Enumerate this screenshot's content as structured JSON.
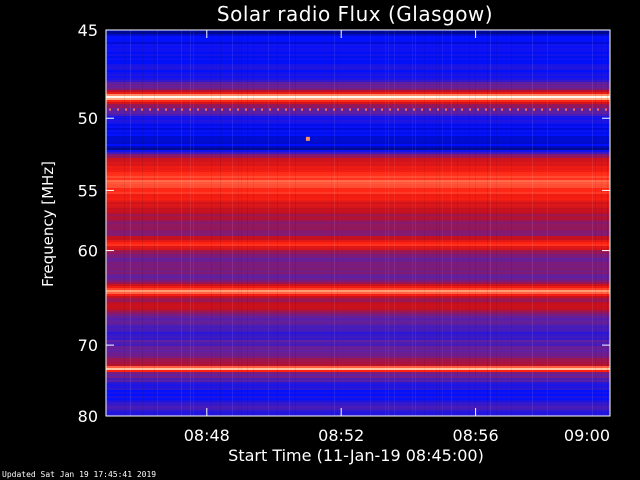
{
  "chart_data": {
    "type": "heatmap",
    "title": "Solar radio Flux (Glasgow)",
    "xlabel": "Start Time (11-Jan-19 08:45:00)",
    "ylabel": "Frequency [MHz]",
    "x_ticks": [
      "08:48",
      "08:52",
      "08:56",
      "09:00"
    ],
    "x_tick_minutes": [
      48,
      52,
      56,
      60
    ],
    "x_range_minutes": [
      45,
      60
    ],
    "y_ticks": [
      45,
      50,
      55,
      60,
      70,
      80
    ],
    "y_range_mhz": [
      45,
      80
    ],
    "y_scale": "reciprocal",
    "color_scale": [
      "#000010",
      "#0010ff",
      "#6020a0",
      "#c01020",
      "#ff2010",
      "#ffb080",
      "#ffffff"
    ],
    "intensity_profile": [
      {
        "freq": 45.0,
        "level": 0.08
      },
      {
        "freq": 45.5,
        "level": 0.16
      },
      {
        "freq": 46.5,
        "level": 0.18
      },
      {
        "freq": 47.5,
        "level": 0.2
      },
      {
        "freq": 48.3,
        "level": 0.4
      },
      {
        "freq": 48.7,
        "level": 1.0
      },
      {
        "freq": 49.1,
        "level": 0.45
      },
      {
        "freq": 49.5,
        "level": 0.35
      },
      {
        "freq": 50.0,
        "level": 0.2
      },
      {
        "freq": 51.0,
        "level": 0.16
      },
      {
        "freq": 52.0,
        "level": 0.12
      },
      {
        "freq": 52.7,
        "level": 0.55
      },
      {
        "freq": 53.5,
        "level": 0.62
      },
      {
        "freq": 54.3,
        "level": 0.75
      },
      {
        "freq": 55.0,
        "level": 0.68
      },
      {
        "freq": 56.0,
        "level": 0.58
      },
      {
        "freq": 57.0,
        "level": 0.45
      },
      {
        "freq": 58.5,
        "level": 0.38
      },
      {
        "freq": 59.4,
        "level": 0.7
      },
      {
        "freq": 60.2,
        "level": 0.4
      },
      {
        "freq": 61.5,
        "level": 0.35
      },
      {
        "freq": 63.0,
        "level": 0.38
      },
      {
        "freq": 63.9,
        "level": 0.8
      },
      {
        "freq": 64.8,
        "level": 0.42
      },
      {
        "freq": 65.5,
        "level": 0.55
      },
      {
        "freq": 66.5,
        "level": 0.38
      },
      {
        "freq": 67.5,
        "level": 0.3
      },
      {
        "freq": 68.5,
        "level": 0.25
      },
      {
        "freq": 69.5,
        "level": 0.3
      },
      {
        "freq": 71.0,
        "level": 0.38
      },
      {
        "freq": 72.5,
        "level": 0.45
      },
      {
        "freq": 73.0,
        "level": 0.95
      },
      {
        "freq": 73.6,
        "level": 0.4
      },
      {
        "freq": 74.5,
        "level": 0.3
      },
      {
        "freq": 75.5,
        "level": 0.22
      },
      {
        "freq": 76.5,
        "level": 0.18
      },
      {
        "freq": 77.5,
        "level": 0.2
      },
      {
        "freq": 78.5,
        "level": 0.28
      },
      {
        "freq": 79.5,
        "level": 0.25
      },
      {
        "freq": 80.0,
        "level": 0.2
      }
    ]
  },
  "footer": "Updated Sat Jan 19 17:45:41 2019"
}
